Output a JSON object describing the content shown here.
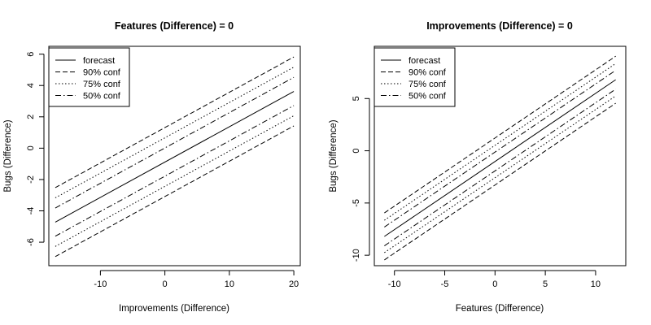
{
  "chart_data": [
    {
      "type": "line",
      "title": "Features (Difference) = 0",
      "xlabel": "Improvements (Difference)",
      "ylabel": "Bugs (Difference)",
      "xlim": [
        -18,
        21
      ],
      "ylim": [
        -7.5,
        6.5
      ],
      "xticks": [
        -10,
        0,
        10,
        20
      ],
      "yticks": [
        -6,
        -4,
        -2,
        0,
        2,
        4,
        6
      ],
      "x": [
        -17,
        20
      ],
      "series": [
        {
          "name": "forecast",
          "style": "solid",
          "values": [
            -4.72,
            3.62
          ]
        },
        {
          "name": "90% conf",
          "style": "dashed",
          "values": [
            -6.92,
            1.42
          ]
        },
        {
          "name": "90% conf",
          "style": "dashed",
          "values": [
            -2.52,
            5.82
          ]
        },
        {
          "name": "75% conf",
          "style": "dotted",
          "values": [
            -6.27,
            2.07
          ]
        },
        {
          "name": "75% conf",
          "style": "dotted",
          "values": [
            -3.17,
            5.17
          ]
        },
        {
          "name": "50% conf",
          "style": "dotdash",
          "values": [
            -5.62,
            2.72
          ]
        },
        {
          "name": "50% conf",
          "style": "dotdash",
          "values": [
            -3.82,
            4.52
          ]
        }
      ],
      "legend": {
        "position": "top-left",
        "entries": [
          {
            "label": "forecast",
            "style": "solid"
          },
          {
            "label": "90% conf",
            "style": "dashed"
          },
          {
            "label": "75% conf",
            "style": "dotted"
          },
          {
            "label": "50% conf",
            "style": "dotdash"
          }
        ]
      }
    },
    {
      "type": "line",
      "title": "Improvements (Difference) = 0",
      "xlabel": "Features (Difference)",
      "ylabel": "Bugs (Difference)",
      "xlim": [
        -12,
        13
      ],
      "ylim": [
        -11,
        10
      ],
      "xticks": [
        -10,
        -5,
        0,
        5,
        10
      ],
      "yticks": [
        -10,
        -5,
        0,
        5
      ],
      "x": [
        -11,
        12
      ],
      "series": [
        {
          "name": "forecast",
          "style": "solid",
          "values": [
            -8.2,
            6.8
          ]
        },
        {
          "name": "90% conf",
          "style": "dashed",
          "values": [
            -10.45,
            4.55
          ]
        },
        {
          "name": "90% conf",
          "style": "dashed",
          "values": [
            -5.95,
            9.05
          ]
        },
        {
          "name": "75% conf",
          "style": "dotted",
          "values": [
            -9.75,
            5.25
          ]
        },
        {
          "name": "75% conf",
          "style": "dotted",
          "values": [
            -6.65,
            8.35
          ]
        },
        {
          "name": "50% conf",
          "style": "dotdash",
          "values": [
            -9.1,
            5.9
          ]
        },
        {
          "name": "50% conf",
          "style": "dotdash",
          "values": [
            -7.3,
            7.7
          ]
        }
      ],
      "legend": {
        "position": "top-left",
        "entries": [
          {
            "label": "forecast",
            "style": "solid"
          },
          {
            "label": "90% conf",
            "style": "dashed"
          },
          {
            "label": "75% conf",
            "style": "dotted"
          },
          {
            "label": "50% conf",
            "style": "dotdash"
          }
        ]
      }
    }
  ]
}
